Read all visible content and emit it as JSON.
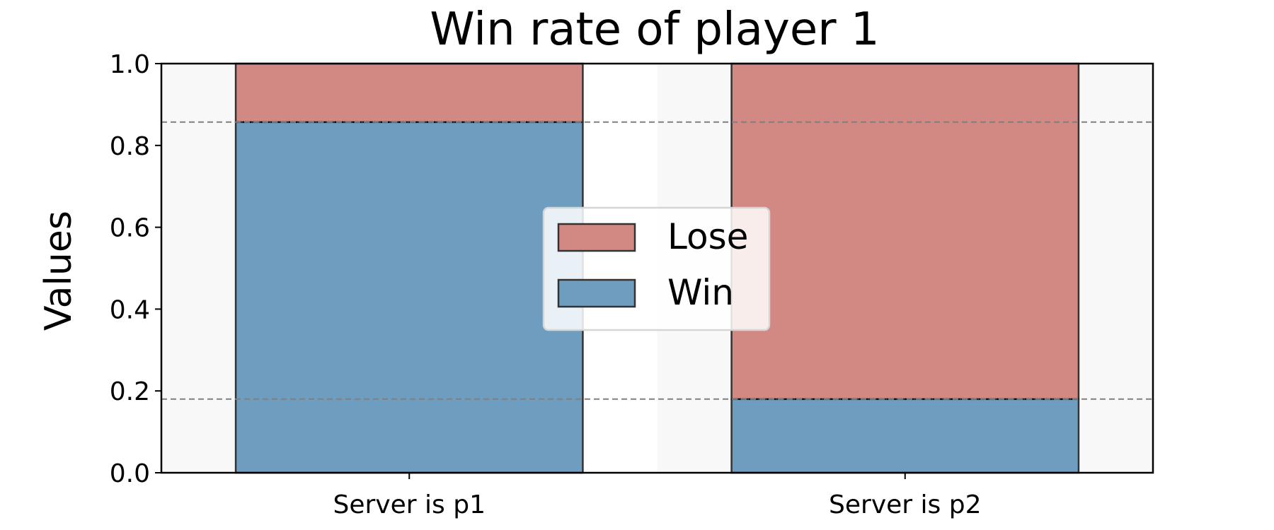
{
  "chart_data": {
    "type": "bar",
    "stacked": true,
    "title": "Win rate of player 1",
    "xlabel": "",
    "ylabel": "Values",
    "categories": [
      "Server is p1",
      "Server is p2"
    ],
    "ylim": [
      0,
      1.0
    ],
    "yticks": [
      "0.0",
      "0.2",
      "0.4",
      "0.6",
      "0.8",
      "1.0"
    ],
    "series": [
      {
        "name": "Win",
        "values": [
          0.857,
          0.18
        ],
        "color": "#6f9dbf"
      },
      {
        "name": "Lose",
        "values": [
          0.143,
          0.82
        ],
        "color": "#d38983"
      }
    ],
    "reference_lines_y": [
      0.18,
      0.857
    ],
    "grid": "dashed vertical lines",
    "legend": [
      "Lose",
      "Win"
    ],
    "legend_position": "center",
    "colors": {
      "background_band": "#f8f8f8",
      "grid": "#808080",
      "edge": "#333333"
    }
  }
}
